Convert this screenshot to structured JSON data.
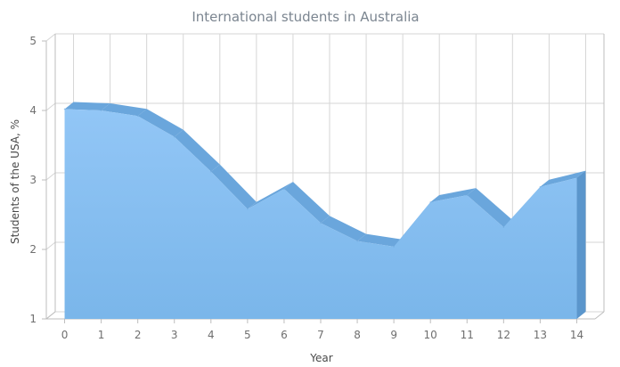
{
  "chart_data": {
    "type": "area",
    "title": "International students in Australia",
    "xlabel": "Year",
    "ylabel": "Students of the USA, %",
    "x": [
      0,
      1,
      2,
      3,
      4,
      5,
      6,
      7,
      8,
      9,
      10,
      11,
      12,
      13,
      14
    ],
    "x_tick_labels": [
      "0",
      "1",
      "2",
      "3",
      "4",
      "5",
      "6",
      "7",
      "8",
      "9",
      "10",
      "11",
      "12",
      "13",
      "14"
    ],
    "y_tick_labels": [
      "1",
      "2",
      "3",
      "4",
      "5"
    ],
    "ylim": [
      1,
      5
    ],
    "grid": true,
    "legend": "none",
    "series": [
      {
        "values": [
          4.02,
          4.0,
          3.92,
          3.62,
          3.12,
          2.58,
          2.87,
          2.38,
          2.12,
          2.04,
          2.68,
          2.78,
          2.32,
          2.9,
          3.03
        ]
      }
    ],
    "colors": {
      "fill_top": "#92c6f6",
      "fill_bottom": "#7ab6ea",
      "depth": "#6aa6dc",
      "side": "#5b96cc"
    }
  }
}
